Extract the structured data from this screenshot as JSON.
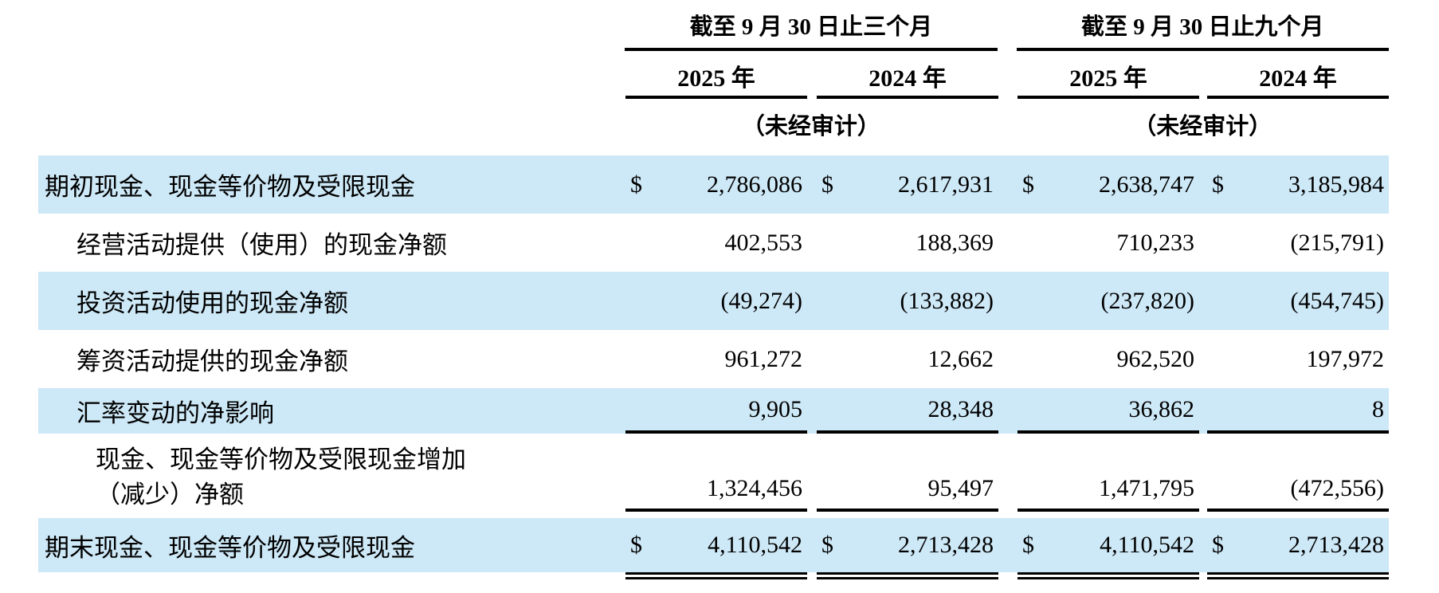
{
  "table": {
    "highlight_color": "#CDE8F6",
    "header": {
      "groups": [
        {
          "title": "截至 9 月 30 日止三个月",
          "years": [
            "2025 年",
            "2024 年"
          ],
          "unaudited": "（未经审计）"
        },
        {
          "title": "截至 9 月 30 日止九个月",
          "years": [
            "2025 年",
            "2024 年"
          ],
          "unaudited": "（未经审计）"
        }
      ]
    },
    "rows": [
      {
        "label": "期初现金、现金等价物及受限现金",
        "currency": "$",
        "values": [
          "2,786,086",
          "2,617,931",
          "2,638,747",
          "3,185,984"
        ]
      },
      {
        "label": "经营活动提供（使用）的现金净额",
        "values": [
          "402,553",
          "188,369",
          "710,233",
          "(215,791)"
        ]
      },
      {
        "label": "投资活动使用的现金净额",
        "values": [
          "(49,274)",
          "(133,882)",
          "(237,820)",
          "(454,745)"
        ]
      },
      {
        "label": "筹资活动提供的现金净额",
        "values": [
          "961,272",
          "12,662",
          "962,520",
          "197,972"
        ]
      },
      {
        "label": "汇率变动的净影响",
        "values": [
          "9,905",
          "28,348",
          "36,862",
          "8"
        ]
      },
      {
        "label": "现金、现金等价物及受限现金增加（减少）净额",
        "values": [
          "1,324,456",
          "95,497",
          "1,471,795",
          "(472,556)"
        ]
      },
      {
        "label": "期末现金、现金等价物及受限现金",
        "currency": "$",
        "values": [
          "4,110,542",
          "2,713,428",
          "4,110,542",
          "2,713,428"
        ]
      }
    ]
  }
}
